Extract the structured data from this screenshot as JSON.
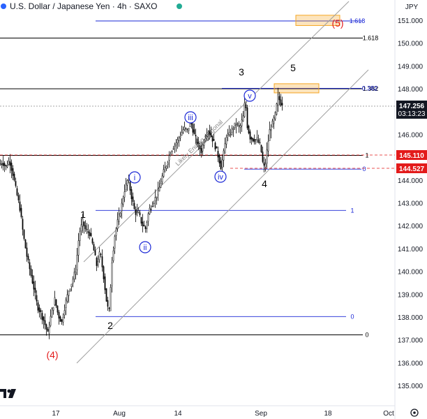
{
  "header": {
    "title": "U.S. Dollar / Japanese Yen · 4h · SAXO",
    "currency": "JPY"
  },
  "price_tags": {
    "last_price": "147.256",
    "countdown": "03:13:23",
    "level_a": "145.110",
    "level_b": "144.527"
  },
  "colors": {
    "candle": "#000000",
    "fib_blue": "#1a27d6",
    "red_tag": "#e31b1b",
    "dark_tag": "#131722",
    "target_box": "#f5a623"
  },
  "logo": "TV",
  "chart_data": {
    "type": "candlestick",
    "symbol": "USDJPY",
    "timeframe": "4h",
    "y_axis": {
      "ticks": [
        "135.000",
        "136.000",
        "137.000",
        "138.000",
        "139.000",
        "140.000",
        "141.000",
        "142.000",
        "143.000",
        "144.000",
        "145.000",
        "146.000",
        "147.000",
        "148.000",
        "149.000",
        "150.000",
        "151.000"
      ]
    },
    "x_axis": {
      "ticks": [
        "17",
        "Aug",
        "14",
        "Sep",
        "18",
        "Oct"
      ]
    },
    "price_path": [
      [
        0,
        144.7
      ],
      [
        5,
        144.8
      ],
      [
        10,
        144.6
      ],
      [
        15,
        144.9
      ],
      [
        20,
        144.3
      ],
      [
        25,
        143.5
      ],
      [
        30,
        142.8
      ],
      [
        35,
        141.6
      ],
      [
        40,
        140.7
      ],
      [
        45,
        140.0
      ],
      [
        50,
        139.3
      ],
      [
        55,
        138.5
      ],
      [
        60,
        138.2
      ],
      [
        65,
        137.8
      ],
      [
        70,
        137.3
      ],
      [
        75,
        138.2
      ],
      [
        80,
        138.8
      ],
      [
        85,
        138.1
      ],
      [
        90,
        137.8
      ],
      [
        95,
        138.6
      ],
      [
        100,
        139.2
      ],
      [
        105,
        139.6
      ],
      [
        110,
        140.1
      ],
      [
        115,
        141.7
      ],
      [
        120,
        142.2
      ],
      [
        125,
        141.8
      ],
      [
        130,
        141.7
      ],
      [
        135,
        141.1
      ],
      [
        140,
        140.3
      ],
      [
        145,
        140.9
      ],
      [
        150,
        139.8
      ],
      [
        155,
        138.5
      ],
      [
        158,
        138.3
      ],
      [
        162,
        140.5
      ],
      [
        166,
        141.6
      ],
      [
        170,
        142.2
      ],
      [
        175,
        142.8
      ],
      [
        180,
        143.6
      ],
      [
        185,
        144.1
      ],
      [
        190,
        143.3
      ],
      [
        195,
        142.6
      ],
      [
        200,
        142.6
      ],
      [
        205,
        142.1
      ],
      [
        210,
        141.9
      ],
      [
        215,
        142.7
      ],
      [
        220,
        143.0
      ],
      [
        225,
        143.3
      ],
      [
        230,
        143.7
      ],
      [
        235,
        144.3
      ],
      [
        240,
        144.7
      ],
      [
        245,
        145.2
      ],
      [
        250,
        145.5
      ],
      [
        255,
        145.7
      ],
      [
        260,
        146.0
      ],
      [
        265,
        146.3
      ],
      [
        270,
        146.2
      ],
      [
        275,
        146.6
      ],
      [
        280,
        146.0
      ],
      [
        285,
        145.6
      ],
      [
        290,
        145.3
      ],
      [
        295,
        145.9
      ],
      [
        300,
        146.2
      ],
      [
        305,
        145.9
      ],
      [
        310,
        145.5
      ],
      [
        315,
        145.0
      ],
      [
        318,
        144.6
      ],
      [
        322,
        145.2
      ],
      [
        326,
        146.0
      ],
      [
        330,
        146.0
      ],
      [
        335,
        146.3
      ],
      [
        340,
        146.5
      ],
      [
        345,
        146.3
      ],
      [
        350,
        146.8
      ],
      [
        353,
        147.6
      ],
      [
        356,
        146.4
      ],
      [
        360,
        145.9
      ],
      [
        365,
        145.8
      ],
      [
        370,
        145.8
      ],
      [
        375,
        145.5
      ],
      [
        378,
        144.8
      ],
      [
        381,
        144.5
      ],
      [
        384,
        145.3
      ],
      [
        388,
        146.2
      ],
      [
        392,
        146.5
      ],
      [
        396,
        146.9
      ],
      [
        400,
        147.7
      ],
      [
        404,
        147.4
      ]
    ],
    "horizontal_levels": [
      {
        "price": 150.25,
        "label": "1.618",
        "style": "black"
      },
      {
        "price": 148.03,
        "label": "1.382",
        "style": "black"
      },
      {
        "price": 145.11,
        "label": "1",
        "style": "black"
      },
      {
        "price": 137.25,
        "label": "0",
        "style": "black"
      },
      {
        "price": 151.0,
        "label": "1.618",
        "style": "blue"
      },
      {
        "price": 148.05,
        "label": "0.382",
        "style": "blue"
      },
      {
        "price": 144.51,
        "label": "0",
        "style": "blue"
      },
      {
        "price": 142.7,
        "label": "1",
        "style": "blue"
      },
      {
        "price": 138.05,
        "label": "0",
        "style": "blue"
      }
    ],
    "target_zones": [
      {
        "price_top": 151.25,
        "price_bottom": 150.8
      },
      {
        "price_top": 148.25,
        "price_bottom": 147.85
      }
    ],
    "channel_label": "Likely Ending diagonal",
    "wave_labels": {
      "primary": [
        "(4)",
        "(5)"
      ],
      "intermediate": [
        "1",
        "2",
        "3",
        "4",
        "5"
      ],
      "minor": [
        "i",
        "ii",
        "iii",
        "iv",
        "v"
      ]
    }
  }
}
